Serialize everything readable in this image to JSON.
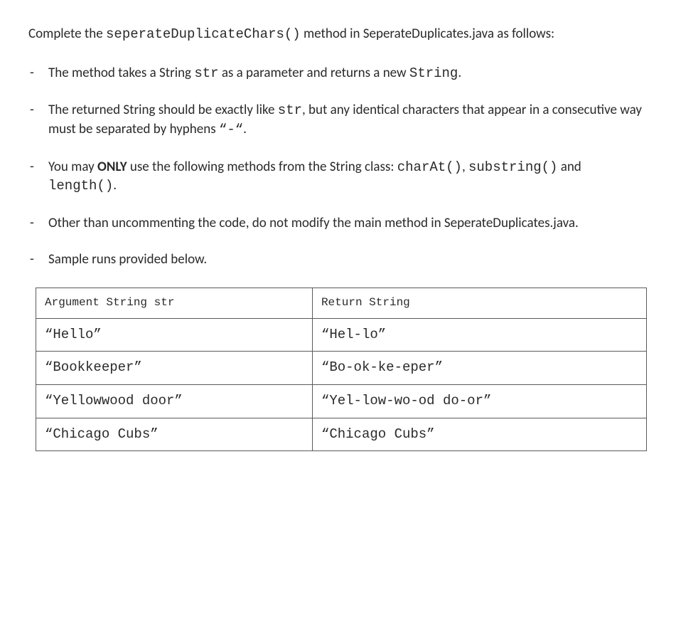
{
  "intro": {
    "pre": "Complete the ",
    "method": "seperateDuplicateChars()",
    "post": " method in SeperateDuplicates.java as follows:"
  },
  "bullets": {
    "b1": {
      "t1": "The method takes a String ",
      "c1": "str",
      "t2": " as a parameter and returns a new ",
      "c2": "String",
      "t3": "."
    },
    "b2": {
      "t1": "The returned String should be exactly like ",
      "c1": "str",
      "t2": ", but any identical characters that appear in a consecutive way must be separated by hyphens ",
      "c2": "“-“",
      "t3": "."
    },
    "b3": {
      "t1": "You may ",
      "bold": "ONLY",
      "t2": " use the following methods from the String class: ",
      "c1": "charAt()",
      "t3": ", ",
      "c2": "substring()",
      "t4": " and ",
      "c3": "length()",
      "t5": "."
    },
    "b4": "Other than uncommenting the code, do not modify the main method in SeperateDuplicates.java.",
    "b5": "Sample runs provided below."
  },
  "table": {
    "header": {
      "arg": "Argument String str",
      "ret": "Return String"
    },
    "rows": [
      {
        "arg": "“Hello”",
        "ret": "“Hel-lo”"
      },
      {
        "arg": "“Bookkeeper”",
        "ret": "“Bo-ok-ke-eper”"
      },
      {
        "arg": "“Yellowwood door”",
        "ret": "“Yel-low-wo-od do-or”"
      },
      {
        "arg": "“Chicago Cubs”",
        "ret": "“Chicago Cubs”"
      }
    ]
  }
}
